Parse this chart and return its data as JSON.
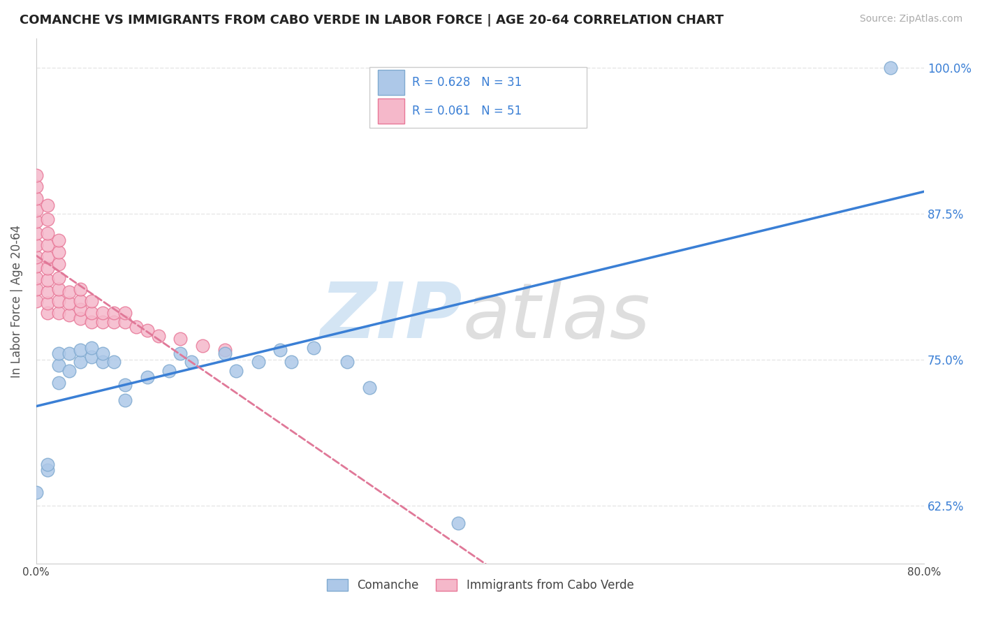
{
  "title": "COMANCHE VS IMMIGRANTS FROM CABO VERDE IN LABOR FORCE | AGE 20-64 CORRELATION CHART",
  "source": "Source: ZipAtlas.com",
  "ylabel": "In Labor Force | Age 20-64",
  "x_min": 0.0,
  "x_max": 0.8,
  "y_min": 0.575,
  "y_max": 1.025,
  "x_ticks": [
    0.0,
    0.1,
    0.2,
    0.3,
    0.4,
    0.5,
    0.6,
    0.7,
    0.8
  ],
  "x_tick_labels": [
    "0.0%",
    "",
    "",
    "",
    "",
    "",
    "",
    "",
    "80.0%"
  ],
  "y_ticks": [
    0.625,
    0.75,
    0.875,
    1.0
  ],
  "y_tick_labels": [
    "62.5%",
    "75.0%",
    "87.5%",
    "100.0%"
  ],
  "comanche_R": 0.628,
  "comanche_N": 31,
  "caboverde_R": 0.061,
  "caboverde_N": 51,
  "comanche_color": "#adc8e8",
  "comanche_edge": "#80aad0",
  "caboverde_color": "#f5b8ca",
  "caboverde_edge": "#e87898",
  "comanche_line_color": "#3a7fd5",
  "caboverde_line_color": "#e07898",
  "grid_color": "#e0e0e0",
  "comanche_x": [
    0.0,
    0.01,
    0.01,
    0.02,
    0.02,
    0.02,
    0.03,
    0.03,
    0.04,
    0.04,
    0.05,
    0.05,
    0.06,
    0.06,
    0.07,
    0.08,
    0.08,
    0.1,
    0.12,
    0.13,
    0.14,
    0.17,
    0.18,
    0.2,
    0.22,
    0.23,
    0.25,
    0.28,
    0.3,
    0.38,
    0.77
  ],
  "comanche_y": [
    0.636,
    0.655,
    0.66,
    0.73,
    0.745,
    0.755,
    0.74,
    0.755,
    0.748,
    0.758,
    0.752,
    0.76,
    0.748,
    0.755,
    0.748,
    0.715,
    0.728,
    0.735,
    0.74,
    0.755,
    0.748,
    0.755,
    0.74,
    0.748,
    0.758,
    0.748,
    0.76,
    0.748,
    0.726,
    0.61,
    1.0
  ],
  "caboverde_x": [
    0.0,
    0.0,
    0.0,
    0.0,
    0.0,
    0.0,
    0.0,
    0.0,
    0.0,
    0.0,
    0.0,
    0.0,
    0.01,
    0.01,
    0.01,
    0.01,
    0.01,
    0.01,
    0.01,
    0.01,
    0.01,
    0.01,
    0.02,
    0.02,
    0.02,
    0.02,
    0.02,
    0.02,
    0.02,
    0.03,
    0.03,
    0.03,
    0.04,
    0.04,
    0.04,
    0.04,
    0.05,
    0.05,
    0.05,
    0.06,
    0.06,
    0.07,
    0.07,
    0.08,
    0.08,
    0.09,
    0.1,
    0.11,
    0.13,
    0.15,
    0.17
  ],
  "caboverde_y": [
    0.8,
    0.81,
    0.82,
    0.83,
    0.838,
    0.848,
    0.858,
    0.868,
    0.878,
    0.888,
    0.898,
    0.908,
    0.79,
    0.798,
    0.808,
    0.818,
    0.828,
    0.838,
    0.848,
    0.858,
    0.87,
    0.882,
    0.79,
    0.8,
    0.81,
    0.82,
    0.832,
    0.842,
    0.852,
    0.788,
    0.798,
    0.808,
    0.785,
    0.793,
    0.8,
    0.81,
    0.782,
    0.79,
    0.8,
    0.782,
    0.79,
    0.782,
    0.79,
    0.782,
    0.79,
    0.778,
    0.775,
    0.77,
    0.768,
    0.762,
    0.758
  ],
  "background_color": "#ffffff"
}
